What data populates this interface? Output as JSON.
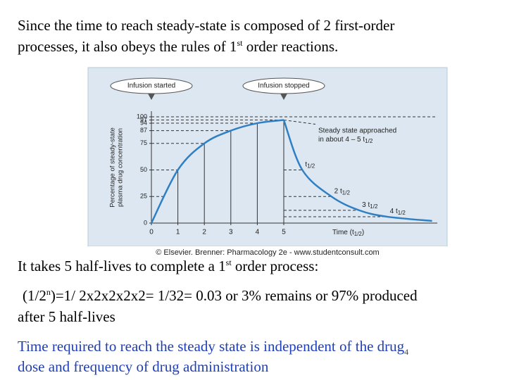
{
  "text": {
    "line1": "Since the time to reach steady-state is composed of 2 first-order",
    "line2": {
      "before": "processes, it also obeys the rules of 1",
      "sup": "st",
      "after": " order reactions."
    },
    "line3": {
      "before": "It takes 5 half-lives to complete a 1",
      "sup": "st",
      "after": " order process:"
    },
    "line4": {
      "before": "(1/2",
      "sup": "n",
      "after": ")=1/ 2x2x2x2x2= 1/32= 0.03 or 3% remains or 97% produced"
    },
    "line5": "after 5 half-lives",
    "line6": "Time required to reach the steady state is independent of the drug",
    "slide_number": 4,
    "line7": "dose and frequency of drug administration"
  },
  "figure": {
    "type": "line",
    "callouts": [
      "Infusion started",
      "Infusion stopped"
    ],
    "y_label": [
      "Percentage of steady-state",
      "plasma drug concentration"
    ],
    "x_label": {
      "text": "Time (t",
      "sub": "1/2",
      "after": ")"
    },
    "annotation": {
      "line1": "Steady state approached",
      "line2": "in about 4 – 5 t",
      "sub": "1/2"
    },
    "decay_labels": [
      {
        "text": "t",
        "sub": "1/2"
      },
      {
        "text": "2 t",
        "sub": "1/2"
      },
      {
        "text": "3 t",
        "sub": "1/2"
      },
      {
        "text": "4 t",
        "sub": "1/2"
      }
    ],
    "credit": "© Elsevier. Brenner: Pharmacology 2e - www.studentconsult.com",
    "xlim": [
      0,
      10.8
    ],
    "ylim": [
      0,
      100
    ],
    "xticks": [
      0,
      1,
      2,
      3,
      4,
      5
    ],
    "yticks": [
      0,
      25,
      50,
      75,
      87,
      94,
      97,
      100
    ],
    "color": "#2f7fc4",
    "rise": {
      "x": [
        0,
        1,
        2,
        3,
        4,
        5
      ],
      "values": [
        0,
        50,
        75,
        87,
        94,
        97
      ]
    },
    "decay": {
      "x": [
        5,
        5.7,
        6.8,
        7.85,
        8.9,
        10.6
      ],
      "values": [
        97,
        50,
        25,
        12,
        6,
        2
      ]
    }
  }
}
